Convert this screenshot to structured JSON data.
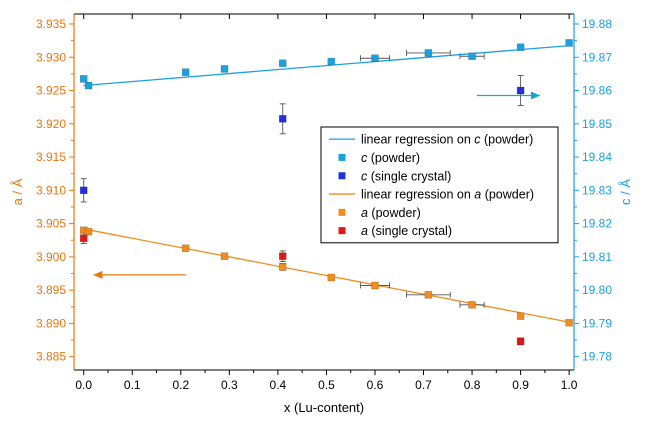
{
  "chart_data": {
    "type": "scatter",
    "xlabel": "x (Lu-content)",
    "ylabel_left": "a / Å",
    "ylabel_right": "c / Å",
    "xlim": [
      -0.02,
      1.01
    ],
    "ylim_left": [
      3.883,
      3.9365
    ],
    "ylim_right": [
      19.776,
      19.883
    ],
    "xticks": [
      "0.0",
      "0.1",
      "0.2",
      "0.3",
      "0.4",
      "0.5",
      "0.6",
      "0.7",
      "0.8",
      "0.9",
      "1.0"
    ],
    "yticks_left": [
      "3.885",
      "3.890",
      "3.895",
      "3.900",
      "3.905",
      "3.910",
      "3.915",
      "3.920",
      "3.925",
      "3.930",
      "3.935"
    ],
    "yticks_right": [
      "19.78",
      "19.79",
      "19.80",
      "19.81",
      "19.82",
      "19.83",
      "19.84",
      "19.85",
      "19.86",
      "19.87",
      "19.88"
    ],
    "colors": {
      "a_axis": "#E8780C",
      "c_axis": "#1BA1E2",
      "a_powder": "#F28C1E",
      "a_single": "#E01818",
      "c_powder": "#1BA1E2",
      "c_single": "#2430E0"
    },
    "series": [
      {
        "key": "c_fit",
        "kind": "line",
        "axis": "right",
        "name": "linear regression on c (powder)",
        "x": [
          0.0,
          1.0
        ],
        "y": [
          19.8615,
          19.8735
        ]
      },
      {
        "key": "c_powder",
        "kind": "points",
        "axis": "right",
        "name": "c (powder)",
        "x": [
          0.0,
          0.01,
          0.21,
          0.29,
          0.41,
          0.51,
          0.6,
          0.71,
          0.8,
          0.9,
          1.0
        ],
        "y": [
          19.8635,
          19.8615,
          19.8655,
          19.8665,
          19.8682,
          19.8687,
          19.8697,
          19.8713,
          19.8703,
          19.873,
          19.8743
        ],
        "xerr": [
          0,
          0,
          0,
          0,
          0,
          0,
          0.03,
          0.045,
          0.025,
          0,
          0
        ],
        "yerr": [
          0,
          0,
          0,
          0,
          0,
          0,
          0,
          0,
          0,
          0,
          0
        ]
      },
      {
        "key": "c_single",
        "kind": "points",
        "axis": "right",
        "name": "c (single crystal)",
        "x": [
          0.0,
          0.41,
          0.9
        ],
        "y": [
          19.83,
          19.8515,
          19.86
        ],
        "xerr": [
          0,
          0,
          0
        ],
        "yerr": [
          0.0035,
          0.0045,
          0.0045
        ]
      },
      {
        "key": "a_fit",
        "kind": "line",
        "axis": "left",
        "name": "linear regression on a (powder)",
        "x": [
          0.0,
          1.0
        ],
        "y": [
          3.9042,
          3.8902
        ]
      },
      {
        "key": "a_powder",
        "kind": "points",
        "axis": "left",
        "name": "a (powder)",
        "x": [
          0.0,
          0.01,
          0.21,
          0.29,
          0.41,
          0.51,
          0.6,
          0.71,
          0.8,
          0.9,
          1.0
        ],
        "y": [
          3.904,
          3.9038,
          3.9013,
          3.9001,
          3.8985,
          3.8969,
          3.8957,
          3.8943,
          3.8928,
          3.8911,
          3.8901
        ],
        "xerr": [
          0,
          0,
          0,
          0,
          0,
          0,
          0.03,
          0.045,
          0.025,
          0,
          0
        ],
        "yerr": [
          0,
          0,
          0,
          0,
          0.0005,
          0,
          0,
          0,
          0,
          0,
          0
        ]
      },
      {
        "key": "a_single",
        "kind": "points",
        "axis": "left",
        "name": "a (single crystal)",
        "x": [
          0.0,
          0.41,
          0.9
        ],
        "y": [
          3.9028,
          3.9001,
          3.8873
        ],
        "xerr": [
          0,
          0,
          0
        ],
        "yerr": [
          0.0008,
          0.0008,
          0.0005
        ]
      }
    ],
    "legend": {
      "placement": "center-right",
      "entries": [
        {
          "series": "c_fit",
          "marker": "line",
          "prefix": "linear regression on ",
          "var": "c",
          "suffix": " (powder)"
        },
        {
          "series": "c_powder",
          "marker": "square",
          "prefix": "",
          "var": "c",
          "suffix": " (powder)"
        },
        {
          "series": "c_single",
          "marker": "square",
          "prefix": "",
          "var": "c",
          "suffix": " (single crystal)"
        },
        {
          "series": "a_fit",
          "marker": "line",
          "prefix": "linear regression on ",
          "var": "a",
          "suffix": " (powder)"
        },
        {
          "series": "a_powder",
          "marker": "square",
          "prefix": "",
          "var": "a",
          "suffix": " (powder)"
        },
        {
          "series": "a_single",
          "marker": "square",
          "prefix": "",
          "var": "a",
          "suffix": " (single crystal)"
        }
      ]
    },
    "annotations": [
      {
        "kind": "arrow",
        "axis": "right",
        "direction": "right",
        "x_from": 0.81,
        "x_to": 0.94,
        "y": 19.8585
      },
      {
        "kind": "arrow",
        "axis": "left",
        "direction": "left",
        "x_from": 0.21,
        "x_to": 0.02,
        "y": 3.8973
      }
    ]
  }
}
